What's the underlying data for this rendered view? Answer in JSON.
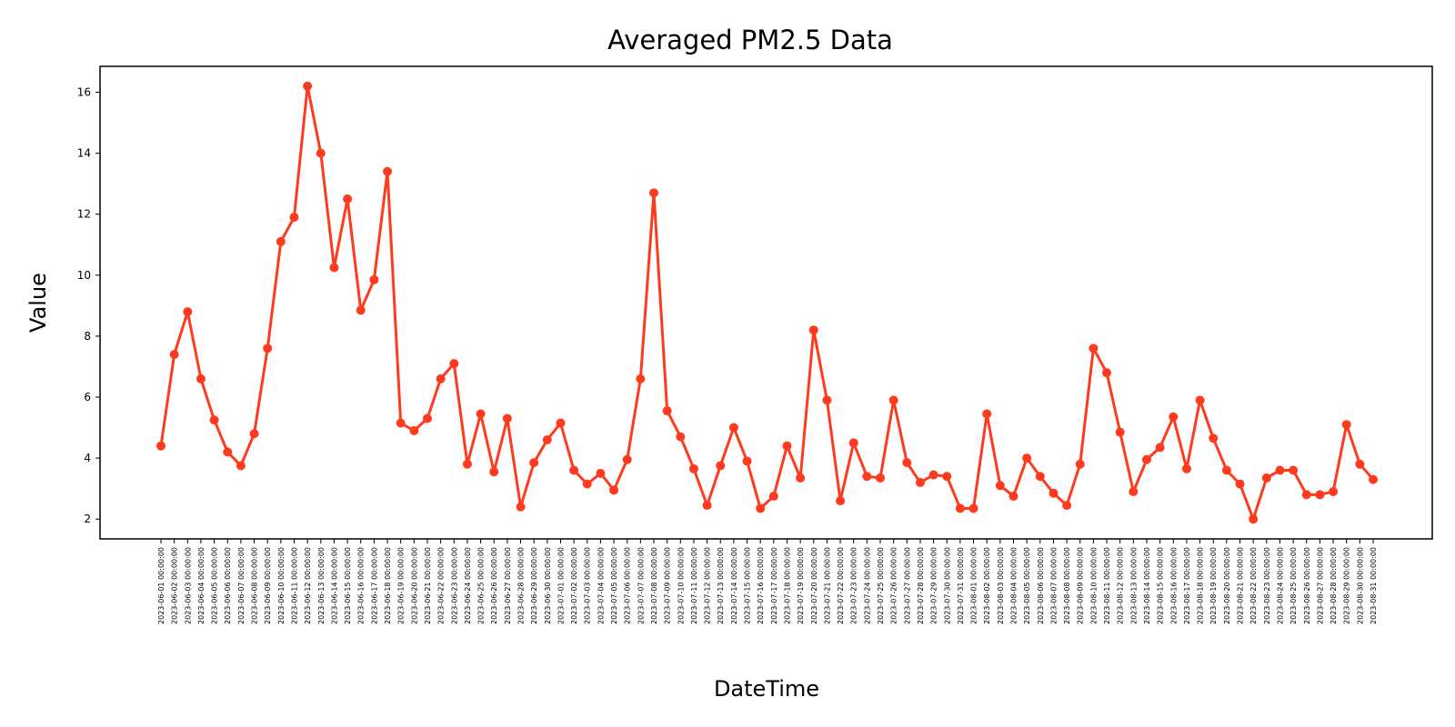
{
  "chart_data": {
    "type": "line",
    "title": "Averaged PM2.5 Data",
    "xlabel": "DateTime",
    "ylabel": "Value",
    "ylim": [
      1.35,
      16.85
    ],
    "yticks": [
      2,
      4,
      6,
      8,
      10,
      12,
      14,
      16
    ],
    "grid": false,
    "color": "#ff3b1f",
    "x": [
      "2023-06-01 00:00:00",
      "2023-06-02 00:00:00",
      "2023-06-03 00:00:00",
      "2023-06-04 00:00:00",
      "2023-06-05 00:00:00",
      "2023-06-06 00:00:00",
      "2023-06-07 00:00:00",
      "2023-06-08 00:00:00",
      "2023-06-09 00:00:00",
      "2023-06-10 00:00:00",
      "2023-06-11 00:00:00",
      "2023-06-12 00:00:00",
      "2023-06-13 00:00:00",
      "2023-06-14 00:00:00",
      "2023-06-15 00:00:00",
      "2023-06-16 00:00:00",
      "2023-06-17 00:00:00",
      "2023-06-18 00:00:00",
      "2023-06-19 00:00:00",
      "2023-06-20 00:00:00",
      "2023-06-21 00:00:00",
      "2023-06-22 00:00:00",
      "2023-06-23 00:00:00",
      "2023-06-24 00:00:00",
      "2023-06-25 00:00:00",
      "2023-06-26 00:00:00",
      "2023-06-27 00:00:00",
      "2023-06-28 00:00:00",
      "2023-06-29 00:00:00",
      "2023-06-30 00:00:00",
      "2023-07-01 00:00:00",
      "2023-07-02 00:00:00",
      "2023-07-03 00:00:00",
      "2023-07-04 00:00:00",
      "2023-07-05 00:00:00",
      "2023-07-06 00:00:00",
      "2023-07-07 00:00:00",
      "2023-07-08 00:00:00",
      "2023-07-09 00:00:00",
      "2023-07-10 00:00:00",
      "2023-07-11 00:00:00",
      "2023-07-12 00:00:00",
      "2023-07-13 00:00:00",
      "2023-07-14 00:00:00",
      "2023-07-15 00:00:00",
      "2023-07-16 00:00:00",
      "2023-07-17 00:00:00",
      "2023-07-18 00:00:00",
      "2023-07-19 00:00:00",
      "2023-07-20 00:00:00",
      "2023-07-21 00:00:00",
      "2023-07-22 00:00:00",
      "2023-07-23 00:00:00",
      "2023-07-24 00:00:00",
      "2023-07-25 00:00:00",
      "2023-07-26 00:00:00",
      "2023-07-27 00:00:00",
      "2023-07-28 00:00:00",
      "2023-07-29 00:00:00",
      "2023-07-30 00:00:00",
      "2023-07-31 00:00:00",
      "2023-08-01 00:00:00",
      "2023-08-02 00:00:00",
      "2023-08-03 00:00:00",
      "2023-08-04 00:00:00",
      "2023-08-05 00:00:00",
      "2023-08-06 00:00:00",
      "2023-08-07 00:00:00",
      "2023-08-08 00:00:00",
      "2023-08-09 00:00:00",
      "2023-08-10 00:00:00",
      "2023-08-11 00:00:00",
      "2023-08-12 00:00:00",
      "2023-08-13 00:00:00",
      "2023-08-14 00:00:00",
      "2023-08-15 00:00:00",
      "2023-08-16 00:00:00",
      "2023-08-17 00:00:00",
      "2023-08-18 00:00:00",
      "2023-08-19 00:00:00",
      "2023-08-20 00:00:00",
      "2023-08-21 00:00:00",
      "2023-08-22 00:00:00",
      "2023-08-23 00:00:00",
      "2023-08-24 00:00:00",
      "2023-08-25 00:00:00",
      "2023-08-26 00:00:00",
      "2023-08-27 00:00:00",
      "2023-08-28 00:00:00",
      "2023-08-29 00:00:00",
      "2023-08-30 00:00:00",
      "2023-08-31 00:00:00"
    ],
    "values": [
      4.4,
      7.4,
      8.8,
      6.6,
      5.25,
      4.2,
      3.75,
      4.8,
      7.6,
      11.1,
      11.9,
      16.2,
      14.0,
      10.25,
      12.5,
      8.85,
      9.85,
      13.4,
      5.15,
      4.9,
      5.3,
      6.6,
      7.1,
      3.8,
      5.45,
      3.55,
      5.3,
      2.4,
      3.85,
      4.6,
      5.15,
      3.6,
      3.15,
      3.5,
      2.95,
      3.95,
      6.6,
      12.7,
      5.55,
      4.7,
      3.65,
      2.45,
      3.75,
      5.0,
      3.9,
      2.35,
      2.75,
      4.4,
      3.35,
      8.2,
      5.9,
      2.6,
      4.5,
      3.4,
      3.35,
      5.9,
      3.85,
      3.2,
      3.45,
      3.4,
      2.35,
      2.35,
      5.45,
      3.1,
      2.75,
      4.0,
      3.4,
      2.85,
      2.45,
      3.8,
      7.6,
      6.8,
      4.85,
      2.9,
      3.95,
      4.35,
      5.35,
      3.65,
      5.9,
      4.65,
      3.6,
      3.15,
      2.0,
      3.35,
      3.6,
      3.6,
      2.8,
      2.8,
      2.9,
      5.1,
      3.8,
      3.3
    ]
  }
}
